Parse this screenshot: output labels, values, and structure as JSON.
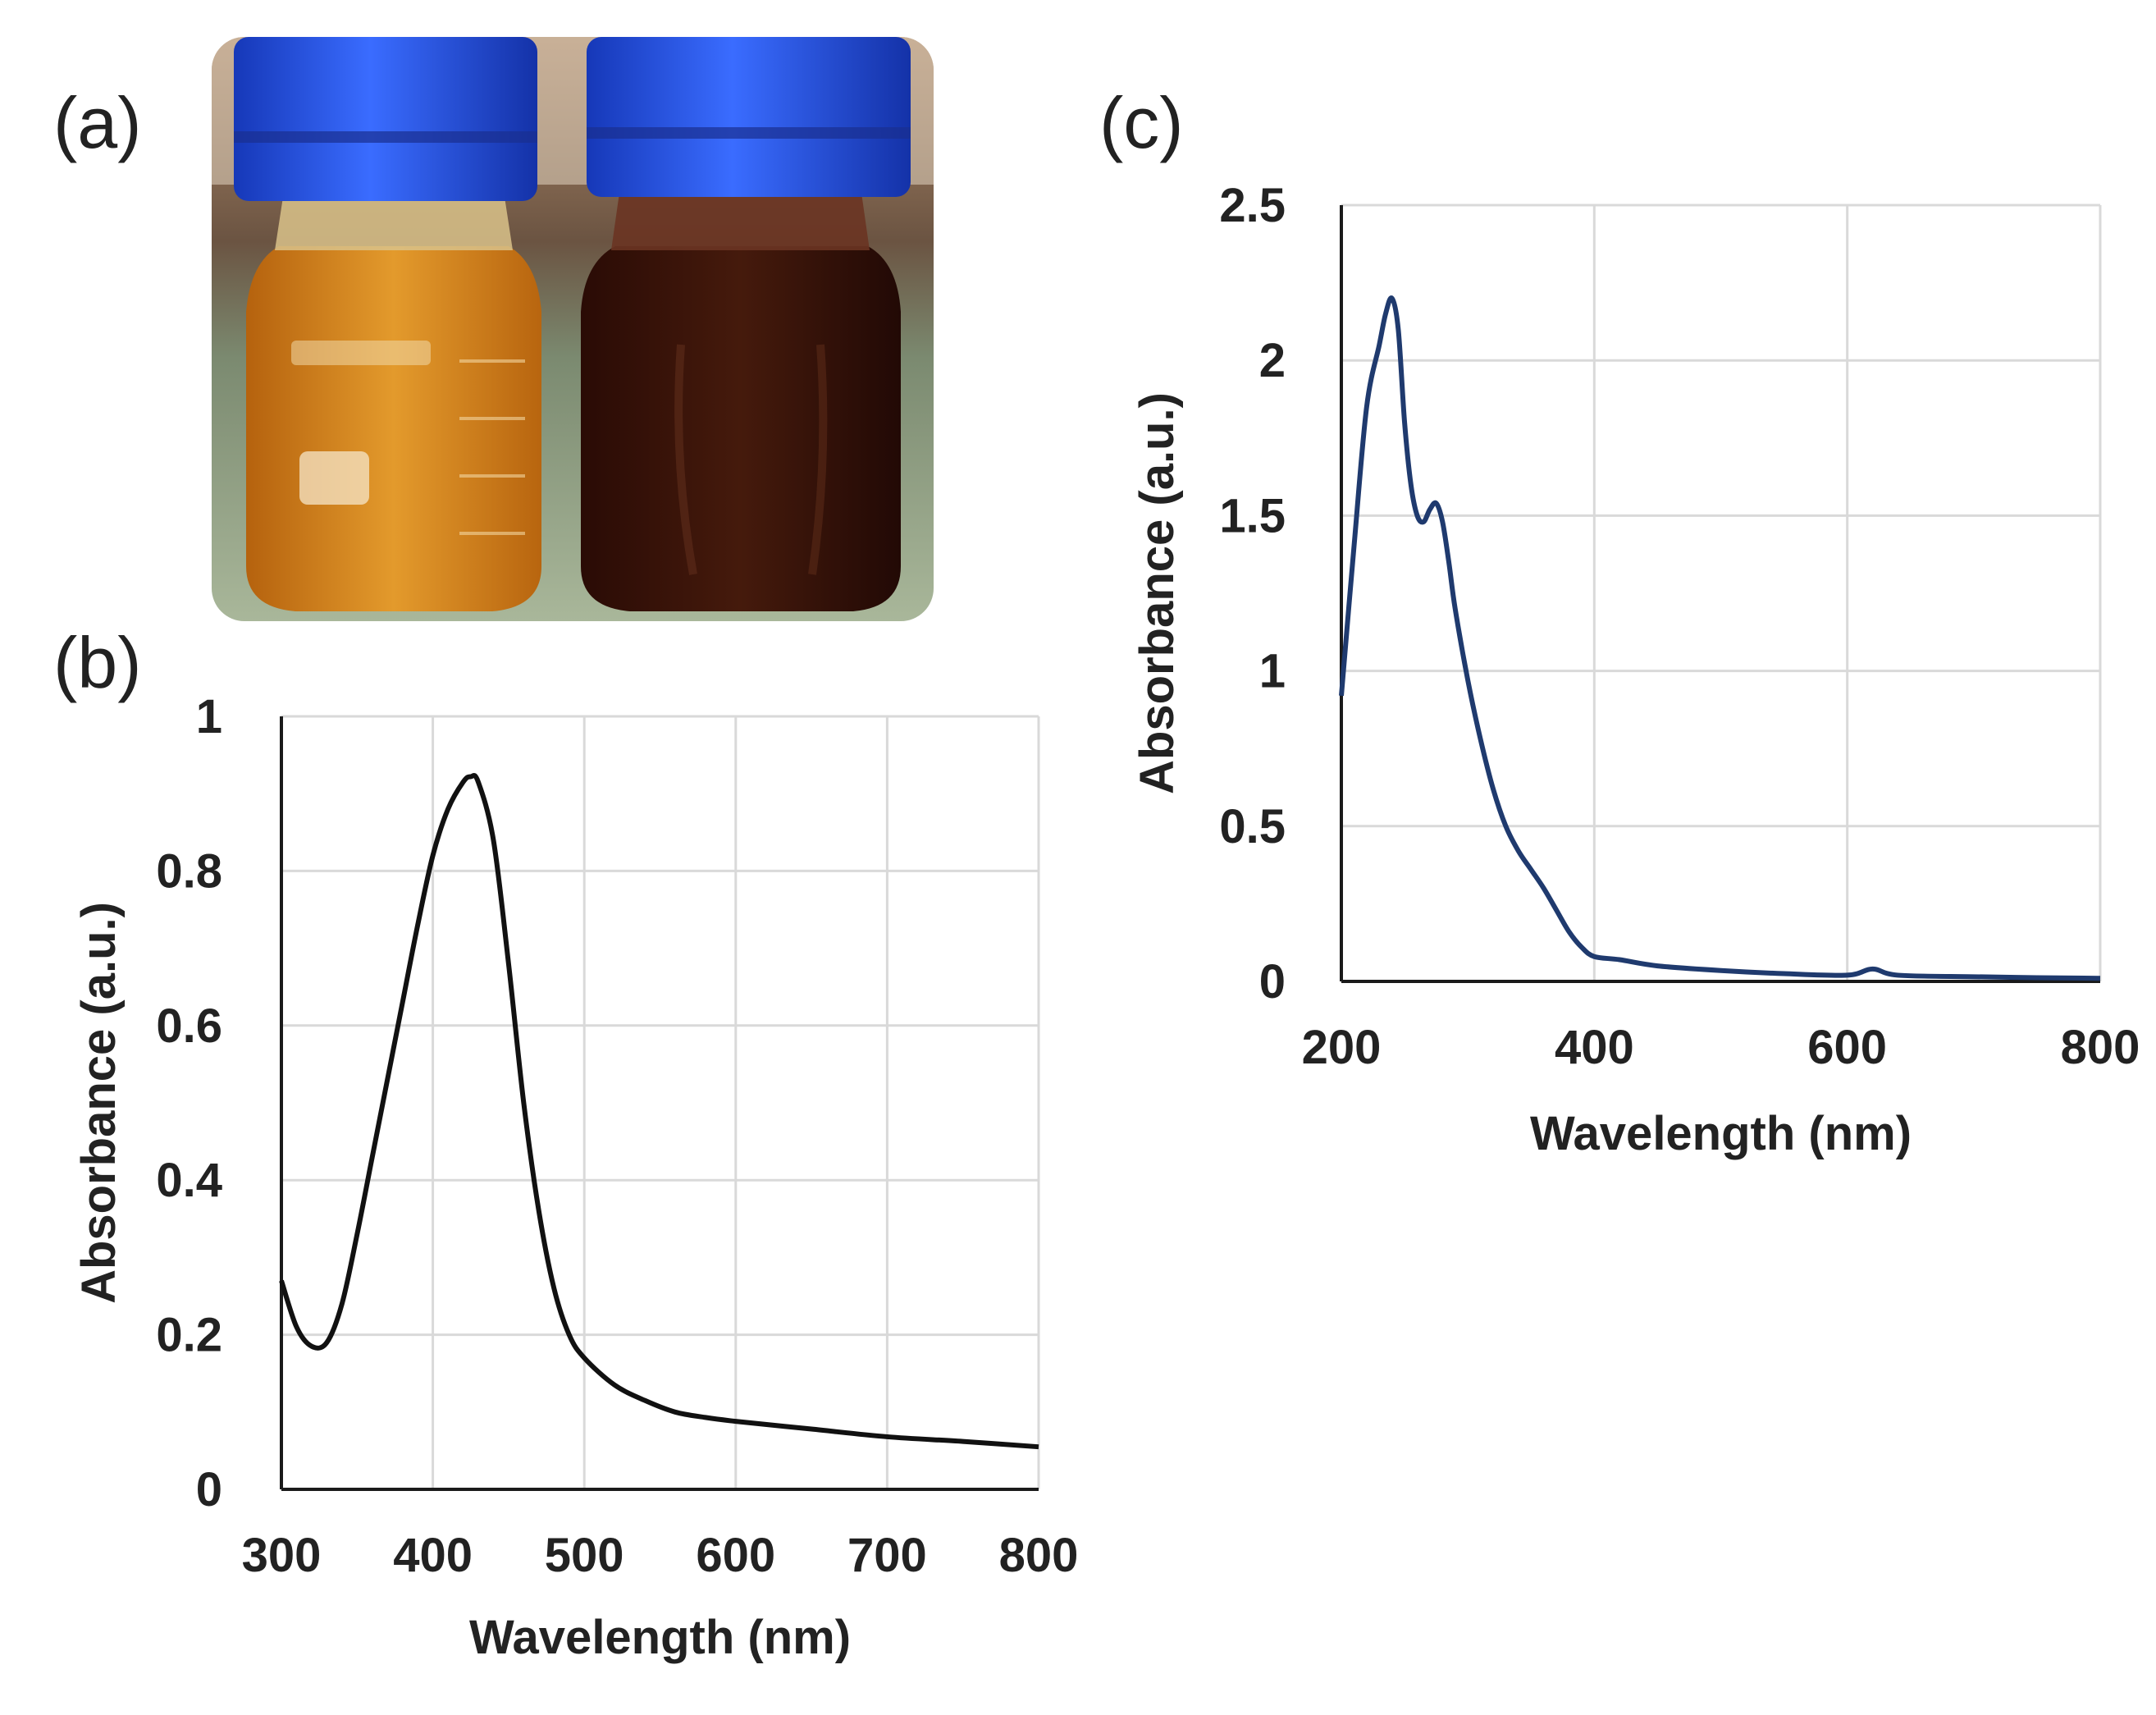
{
  "panels": {
    "a": {
      "label": "(a)"
    },
    "b": {
      "label": "(b)"
    },
    "c": {
      "label": "(c)"
    }
  },
  "photo": {
    "description_icon": "two-glass-bottles-photo",
    "colors": {
      "cap": "#1f4fe0",
      "left_liquid": "#d27e1a",
      "right_liquid": "#3a1208",
      "background": "#7a5a40",
      "bench": "#9fb890"
    }
  },
  "chart_data": [
    {
      "panel": "(b)",
      "type": "line",
      "title": "",
      "xlabel": "Wavelength (nm)",
      "ylabel": "Absorbance (a.u.)",
      "xlim": [
        300,
        800
      ],
      "ylim": [
        0,
        1
      ],
      "xticks": [
        300,
        400,
        500,
        600,
        700,
        800
      ],
      "yticks": [
        0,
        0.2,
        0.4,
        0.6,
        0.8,
        1
      ],
      "ytick_labels": [
        "0",
        "0.2",
        "0.4",
        "0.6",
        "0.8",
        "1"
      ],
      "grid": true,
      "color": "#111111",
      "series": [
        {
          "name": "spectrum-b",
          "x": [
            300,
            310,
            320,
            330,
            340,
            350,
            360,
            370,
            380,
            390,
            400,
            410,
            420,
            425,
            430,
            440,
            450,
            460,
            470,
            480,
            490,
            500,
            520,
            540,
            560,
            580,
            600,
            650,
            700,
            750,
            800
          ],
          "y": [
            0.27,
            0.21,
            0.185,
            0.19,
            0.24,
            0.33,
            0.43,
            0.53,
            0.63,
            0.73,
            0.82,
            0.88,
            0.915,
            0.922,
            0.915,
            0.84,
            0.68,
            0.5,
            0.36,
            0.26,
            0.2,
            0.17,
            0.135,
            0.115,
            0.1,
            0.093,
            0.088,
            0.078,
            0.068,
            0.062,
            0.055
          ]
        }
      ]
    },
    {
      "panel": "(c)",
      "type": "line",
      "title": "",
      "xlabel": "Wavelength (nm)",
      "ylabel": "Absorbance (a.u.)",
      "xlim": [
        200,
        800
      ],
      "ylim": [
        0,
        2.5
      ],
      "xticks": [
        200,
        400,
        600,
        800
      ],
      "yticks": [
        0,
        0.5,
        1,
        1.5,
        2,
        2.5
      ],
      "ytick_labels": [
        "0",
        "0.5",
        "1",
        "1.5",
        "2",
        "2.5"
      ],
      "grid": true,
      "color": "#1f3a6e",
      "series": [
        {
          "name": "spectrum-c",
          "x": [
            200,
            210,
            220,
            230,
            235,
            240,
            245,
            250,
            255,
            260,
            265,
            270,
            275,
            280,
            285,
            290,
            300,
            310,
            320,
            330,
            340,
            350,
            360,
            370,
            380,
            390,
            400,
            420,
            450,
            500,
            550,
            600,
            620,
            640,
            700,
            750,
            800
          ],
          "y": [
            0.92,
            1.4,
            1.85,
            2.05,
            2.15,
            2.2,
            2.1,
            1.8,
            1.6,
            1.5,
            1.48,
            1.52,
            1.54,
            1.48,
            1.35,
            1.2,
            0.97,
            0.78,
            0.62,
            0.5,
            0.42,
            0.36,
            0.3,
            0.23,
            0.16,
            0.11,
            0.08,
            0.07,
            0.05,
            0.035,
            0.025,
            0.02,
            0.04,
            0.02,
            0.015,
            0.012,
            0.01
          ]
        }
      ]
    }
  ]
}
